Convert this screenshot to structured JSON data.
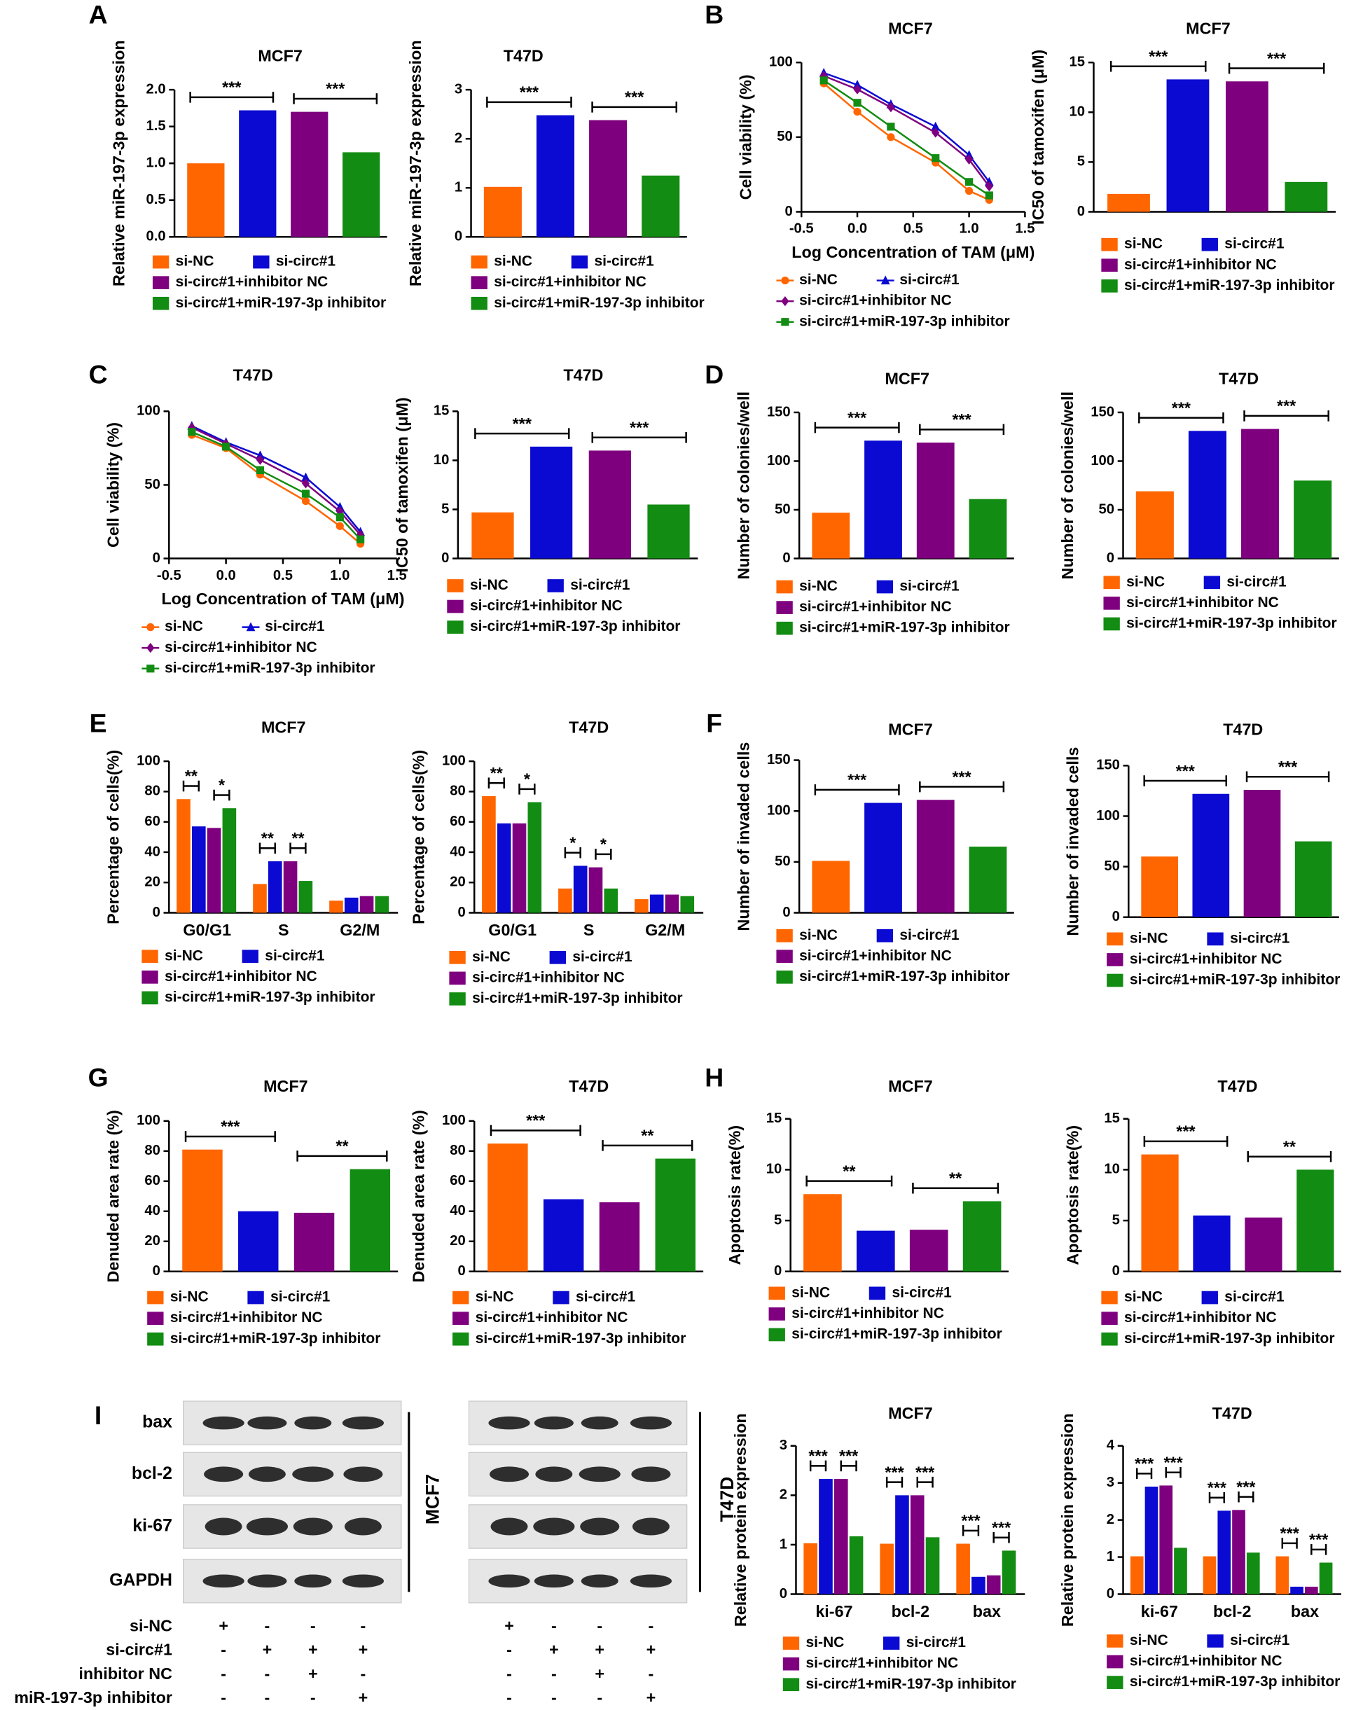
{
  "panel_labels": [
    "A",
    "B",
    "C",
    "D",
    "E",
    "F",
    "G",
    "H",
    "I"
  ],
  "chart_data": [
    {
      "type": "bar",
      "title": "MCF7",
      "ylabel": "Relative miR-197-3p expression",
      "ylim": [
        0,
        2
      ],
      "yticks": [
        {
          "value": 0,
          "label": "0.0"
        },
        0.5,
        {
          "value": 1,
          "label": "1.0"
        },
        1.5,
        {
          "value": 2,
          "label": "2.0"
        }
      ],
      "series": [
        {
          "name": "si-NC",
          "color": "#ff6600",
          "values": [
            1.0
          ]
        },
        {
          "name": "si-circ#1",
          "color": "#0a0ad2",
          "values": [
            1.72
          ]
        },
        {
          "name": "si-circ#1+inhibitor NC",
          "color": "#7f007f",
          "values": [
            1.7
          ]
        },
        {
          "name": "si-circ#1+miR-197-3p inhibitor",
          "color": "#128c12",
          "values": [
            1.15
          ]
        }
      ],
      "significance": [
        "***",
        "***"
      ]
    },
    {
      "type": "bar",
      "title": "T47D",
      "ylabel": "Relative miR-197-3p expression",
      "ylim": [
        0,
        3
      ],
      "yticks": [
        0,
        1,
        2,
        3
      ],
      "series": [
        {
          "name": "si-NC",
          "color": "#ff6600",
          "values": [
            1.02
          ]
        },
        {
          "name": "si-circ#1",
          "color": "#0a0ad2",
          "values": [
            2.48
          ]
        },
        {
          "name": "si-circ#1+inhibitor NC",
          "color": "#7f007f",
          "values": [
            2.38
          ]
        },
        {
          "name": "si-circ#1+miR-197-3p inhibitor",
          "color": "#128c12",
          "values": [
            1.25
          ]
        }
      ],
      "significance": [
        "***",
        "***"
      ]
    },
    {
      "type": "line",
      "title": "MCF7",
      "ylabel": "Cell viability (%)",
      "xlabel": "Log Concentration of TAM (μM)",
      "x": [
        -0.3,
        0,
        0.3,
        0.7,
        1,
        1.18
      ],
      "xlim": [
        -0.5,
        1.5
      ],
      "xticks": [
        -0.5,
        {
          "value": 0,
          "label": "0.0"
        },
        0.5,
        {
          "value": 1,
          "label": "1.0"
        },
        1.5
      ],
      "ylim": [
        0,
        100
      ],
      "yticks": [
        0,
        50,
        100
      ],
      "series": [
        {
          "name": "si-NC",
          "color": "#ff6600",
          "values": [
            86,
            67,
            50,
            33,
            14,
            8
          ]
        },
        {
          "name": "si-circ#1",
          "color": "#0a0ad2",
          "values": [
            93,
            85,
            72,
            57,
            38,
            20
          ]
        },
        {
          "name": "si-circ#1+inhibitor NC",
          "color": "#7f007f",
          "values": [
            91,
            82,
            70,
            53,
            35,
            17
          ]
        },
        {
          "name": "si-circ#1+miR-197-3p inhibitor",
          "color": "#128c12",
          "values": [
            88,
            73,
            57,
            36,
            20,
            11
          ]
        }
      ]
    },
    {
      "type": "bar",
      "title": "MCF7",
      "ylabel": "IC50 of tamoxifen (μM)",
      "ylim": [
        0,
        15
      ],
      "yticks": [
        0,
        5,
        10,
        15
      ],
      "series": [
        {
          "name": "si-NC",
          "color": "#ff6600",
          "values": [
            1.8
          ]
        },
        {
          "name": "si-circ#1",
          "color": "#0a0ad2",
          "values": [
            13.3
          ]
        },
        {
          "name": "si-circ#1+inhibitor NC",
          "color": "#7f007f",
          "values": [
            13.1
          ]
        },
        {
          "name": "si-circ#1+miR-197-3p inhibitor",
          "color": "#128c12",
          "values": [
            3.0
          ]
        }
      ],
      "significance": [
        "***",
        "***"
      ]
    },
    {
      "type": "line",
      "title": "T47D",
      "ylabel": "Cell viability (%)",
      "xlabel": "Log Concentration of TAM (μM)",
      "x": [
        -0.3,
        0,
        0.3,
        0.7,
        1,
        1.18
      ],
      "xlim": [
        -0.5,
        1.5
      ],
      "xticks": [
        -0.5,
        {
          "value": 0,
          "label": "0.0"
        },
        0.5,
        {
          "value": 1,
          "label": "1.0"
        },
        1.5
      ],
      "ylim": [
        0,
        100
      ],
      "yticks": [
        0,
        50,
        100
      ],
      "series": [
        {
          "name": "si-NC",
          "color": "#ff6600",
          "values": [
            84,
            75,
            57,
            39,
            22,
            10
          ]
        },
        {
          "name": "si-circ#1",
          "color": "#0a0ad2",
          "values": [
            90,
            79,
            70,
            55,
            35,
            18
          ]
        },
        {
          "name": "si-circ#1+inhibitor NC",
          "color": "#7f007f",
          "values": [
            89,
            78,
            67,
            51,
            32,
            16
          ]
        },
        {
          "name": "si-circ#1+miR-197-3p inhibitor",
          "color": "#128c12",
          "values": [
            86,
            76,
            60,
            44,
            28,
            13
          ]
        }
      ]
    },
    {
      "type": "bar",
      "title": "T47D",
      "ylabel": "IC50 of tamoxifen (μM)",
      "ylim": [
        0,
        15
      ],
      "yticks": [
        0,
        5,
        10,
        15
      ],
      "series": [
        {
          "name": "si-NC",
          "color": "#ff6600",
          "values": [
            4.7
          ]
        },
        {
          "name": "si-circ#1",
          "color": "#0a0ad2",
          "values": [
            11.4
          ]
        },
        {
          "name": "si-circ#1+inhibitor NC",
          "color": "#7f007f",
          "values": [
            11.0
          ]
        },
        {
          "name": "si-circ#1+miR-197-3p inhibitor",
          "color": "#128c12",
          "values": [
            5.5
          ]
        }
      ],
      "significance": [
        "***",
        "***"
      ]
    },
    {
      "type": "bar",
      "title": "MCF7",
      "ylabel": "Number of colonies/well",
      "ylim": [
        0,
        150
      ],
      "yticks": [
        0,
        50,
        100,
        150
      ],
      "series": [
        {
          "name": "si-NC",
          "color": "#ff6600",
          "values": [
            47
          ]
        },
        {
          "name": "si-circ#1",
          "color": "#0a0ad2",
          "values": [
            121
          ]
        },
        {
          "name": "si-circ#1+inhibitor NC",
          "color": "#7f007f",
          "values": [
            119
          ]
        },
        {
          "name": "si-circ#1+miR-197-3p inhibitor",
          "color": "#128c12",
          "values": [
            61
          ]
        }
      ],
      "significance": [
        "***",
        "***"
      ]
    },
    {
      "type": "bar",
      "title": "T47D",
      "ylabel": "Number of colonies/well",
      "ylim": [
        0,
        150
      ],
      "yticks": [
        0,
        50,
        100,
        150
      ],
      "series": [
        {
          "name": "si-NC",
          "color": "#ff6600",
          "values": [
            69
          ]
        },
        {
          "name": "si-circ#1",
          "color": "#0a0ad2",
          "values": [
            131
          ]
        },
        {
          "name": "si-circ#1+inhibitor NC",
          "color": "#7f007f",
          "values": [
            133
          ]
        },
        {
          "name": "si-circ#1+miR-197-3p inhibitor",
          "color": "#128c12",
          "values": [
            80
          ]
        }
      ],
      "significance": [
        "***",
        "***"
      ]
    },
    {
      "type": "bar",
      "title": "MCF7",
      "ylabel": "Percentage of cells(%)",
      "categories": [
        "G0/G1",
        "S",
        "G2/M"
      ],
      "ylim": [
        0,
        100
      ],
      "yticks": [
        0,
        20,
        40,
        60,
        80,
        100
      ],
      "series": [
        {
          "name": "si-NC",
          "color": "#ff6600",
          "values": [
            75,
            19,
            8
          ]
        },
        {
          "name": "si-circ#1",
          "color": "#0a0ad2",
          "values": [
            57,
            34,
            10
          ]
        },
        {
          "name": "si-circ#1+inhibitor NC",
          "color": "#7f007f",
          "values": [
            56,
            34,
            11
          ]
        },
        {
          "name": "si-circ#1+miR-197-3p inhibitor",
          "color": "#128c12",
          "values": [
            69,
            21,
            11
          ]
        }
      ],
      "significance": [
        [
          "**",
          "*"
        ],
        [
          "**",
          "**"
        ],
        []
      ]
    },
    {
      "type": "bar",
      "title": "T47D",
      "ylabel": "Percentage of cells(%)",
      "categories": [
        "G0/G1",
        "S",
        "G2/M"
      ],
      "ylim": [
        0,
        100
      ],
      "yticks": [
        0,
        20,
        40,
        60,
        80,
        100
      ],
      "series": [
        {
          "name": "si-NC",
          "color": "#ff6600",
          "values": [
            77,
            16,
            9
          ]
        },
        {
          "name": "si-circ#1",
          "color": "#0a0ad2",
          "values": [
            59,
            31,
            12
          ]
        },
        {
          "name": "si-circ#1+inhibitor NC",
          "color": "#7f007f",
          "values": [
            59,
            30,
            12
          ]
        },
        {
          "name": "si-circ#1+miR-197-3p inhibitor",
          "color": "#128c12",
          "values": [
            73,
            16,
            11
          ]
        }
      ],
      "significance": [
        [
          "**",
          "*"
        ],
        [
          "*",
          "*"
        ],
        []
      ]
    },
    {
      "type": "bar",
      "title": "MCF7",
      "ylabel": "Number of invaded cells",
      "ylim": [
        0,
        150
      ],
      "yticks": [
        0,
        50,
        100,
        150
      ],
      "series": [
        {
          "name": "si-NC",
          "color": "#ff6600",
          "values": [
            51
          ]
        },
        {
          "name": "si-circ#1",
          "color": "#0a0ad2",
          "values": [
            108
          ]
        },
        {
          "name": "si-circ#1+inhibitor NC",
          "color": "#7f007f",
          "values": [
            111
          ]
        },
        {
          "name": "si-circ#1+miR-197-3p inhibitor",
          "color": "#128c12",
          "values": [
            65
          ]
        }
      ],
      "significance": [
        "***",
        "***"
      ]
    },
    {
      "type": "bar",
      "title": "T47D",
      "ylabel": "Number of invaded cells",
      "ylim": [
        0,
        150
      ],
      "yticks": [
        0,
        50,
        100,
        150
      ],
      "series": [
        {
          "name": "si-NC",
          "color": "#ff6600",
          "values": [
            60
          ]
        },
        {
          "name": "si-circ#1",
          "color": "#0a0ad2",
          "values": [
            122
          ]
        },
        {
          "name": "si-circ#1+inhibitor NC",
          "color": "#7f007f",
          "values": [
            126
          ]
        },
        {
          "name": "si-circ#1+miR-197-3p inhibitor",
          "color": "#128c12",
          "values": [
            75
          ]
        }
      ],
      "significance": [
        "***",
        "***"
      ]
    },
    {
      "type": "bar",
      "title": "MCF7",
      "ylabel": "Denuded area rate (%)",
      "ylim": [
        0,
        100
      ],
      "yticks": [
        0,
        20,
        40,
        60,
        80,
        100
      ],
      "series": [
        {
          "name": "si-NC",
          "color": "#ff6600",
          "values": [
            81
          ]
        },
        {
          "name": "si-circ#1",
          "color": "#0a0ad2",
          "values": [
            40
          ]
        },
        {
          "name": "si-circ#1+inhibitor NC",
          "color": "#7f007f",
          "values": [
            39
          ]
        },
        {
          "name": "si-circ#1+miR-197-3p inhibitor",
          "color": "#128c12",
          "values": [
            68
          ]
        }
      ],
      "significance": [
        "***",
        "**"
      ]
    },
    {
      "type": "bar",
      "title": "T47D",
      "ylabel": "Denuded area rate (%)",
      "ylim": [
        0,
        100
      ],
      "yticks": [
        0,
        20,
        40,
        60,
        80,
        100
      ],
      "series": [
        {
          "name": "si-NC",
          "color": "#ff6600",
          "values": [
            85
          ]
        },
        {
          "name": "si-circ#1",
          "color": "#0a0ad2",
          "values": [
            48
          ]
        },
        {
          "name": "si-circ#1+inhibitor NC",
          "color": "#7f007f",
          "values": [
            46
          ]
        },
        {
          "name": "si-circ#1+miR-197-3p inhibitor",
          "color": "#128c12",
          "values": [
            75
          ]
        }
      ],
      "significance": [
        "***",
        "**"
      ]
    },
    {
      "type": "bar",
      "title": "MCF7",
      "ylabel": "Apoptosis rate(%)",
      "ylim": [
        0,
        15
      ],
      "yticks": [
        0,
        5,
        10,
        15
      ],
      "series": [
        {
          "name": "si-NC",
          "color": "#ff6600",
          "values": [
            7.6
          ]
        },
        {
          "name": "si-circ#1",
          "color": "#0a0ad2",
          "values": [
            4.0
          ]
        },
        {
          "name": "si-circ#1+inhibitor NC",
          "color": "#7f007f",
          "values": [
            4.1
          ]
        },
        {
          "name": "si-circ#1+miR-197-3p inhibitor",
          "color": "#128c12",
          "values": [
            6.9
          ]
        }
      ],
      "significance": [
        "**",
        "**"
      ]
    },
    {
      "type": "bar",
      "title": "T47D",
      "ylabel": "Apoptosis rate(%)",
      "ylim": [
        0,
        15
      ],
      "yticks": [
        0,
        5,
        10,
        15
      ],
      "series": [
        {
          "name": "si-NC",
          "color": "#ff6600",
          "values": [
            11.5
          ]
        },
        {
          "name": "si-circ#1",
          "color": "#0a0ad2",
          "values": [
            5.5
          ]
        },
        {
          "name": "si-circ#1+inhibitor NC",
          "color": "#7f007f",
          "values": [
            5.3
          ]
        },
        {
          "name": "si-circ#1+miR-197-3p inhibitor",
          "color": "#128c12",
          "values": [
            10.0
          ]
        }
      ],
      "significance": [
        "***",
        "**"
      ]
    },
    {
      "type": "bar",
      "title": "MCF7",
      "ylabel": "Relative protein expression",
      "categories": [
        "ki-67",
        "bcl-2",
        "bax"
      ],
      "ylim": [
        0,
        3
      ],
      "yticks": [
        0,
        1,
        2,
        3
      ],
      "series": [
        {
          "name": "si-NC",
          "color": "#ff6600",
          "values": [
            1.03,
            1.02,
            1.02
          ]
        },
        {
          "name": "si-circ#1",
          "color": "#0a0ad2",
          "values": [
            2.33,
            2.0,
            0.35
          ]
        },
        {
          "name": "si-circ#1+inhibitor NC",
          "color": "#7f007f",
          "values": [
            2.33,
            2.0,
            0.38
          ]
        },
        {
          "name": "si-circ#1+miR-197-3p inhibitor",
          "color": "#128c12",
          "values": [
            1.17,
            1.15,
            0.88
          ]
        }
      ],
      "significance": [
        [
          "***",
          "***"
        ],
        [
          "***",
          "***"
        ],
        [
          "***",
          "***"
        ]
      ]
    },
    {
      "type": "bar",
      "title": "T47D",
      "ylabel": "Relative protein expression",
      "categories": [
        "ki-67",
        "bcl-2",
        "bax"
      ],
      "ylim": [
        0,
        4
      ],
      "yticks": [
        0,
        1,
        2,
        3,
        4
      ],
      "series": [
        {
          "name": "si-NC",
          "color": "#ff6600",
          "values": [
            1.02,
            1.02,
            1.02
          ]
        },
        {
          "name": "si-circ#1",
          "color": "#0a0ad2",
          "values": [
            2.9,
            2.25,
            0.2
          ]
        },
        {
          "name": "si-circ#1+inhibitor NC",
          "color": "#7f007f",
          "values": [
            2.93,
            2.27,
            0.2
          ]
        },
        {
          "name": "si-circ#1+miR-197-3p inhibitor",
          "color": "#128c12",
          "values": [
            1.25,
            1.12,
            0.85
          ]
        }
      ],
      "significance": [
        [
          "***",
          "***"
        ],
        [
          "***",
          "***"
        ],
        [
          "***",
          "***"
        ]
      ]
    }
  ],
  "blot": {
    "proteins": [
      "bax",
      "bcl-2",
      "ki-67",
      "GAPDH"
    ],
    "cell_lines": [
      "MCF7",
      "T47D"
    ],
    "conditions": [
      {
        "name": "si-NC",
        "signs": [
          "+",
          "-",
          "-",
          "-"
        ]
      },
      {
        "name": "si-circ#1",
        "signs": [
          "-",
          "+",
          "+",
          "+"
        ]
      },
      {
        "name": "inhibitor NC",
        "signs": [
          "-",
          "-",
          "+",
          "-"
        ]
      },
      {
        "name": "miR-197-3p inhibitor",
        "signs": [
          "-",
          "-",
          "-",
          "+"
        ]
      }
    ]
  }
}
